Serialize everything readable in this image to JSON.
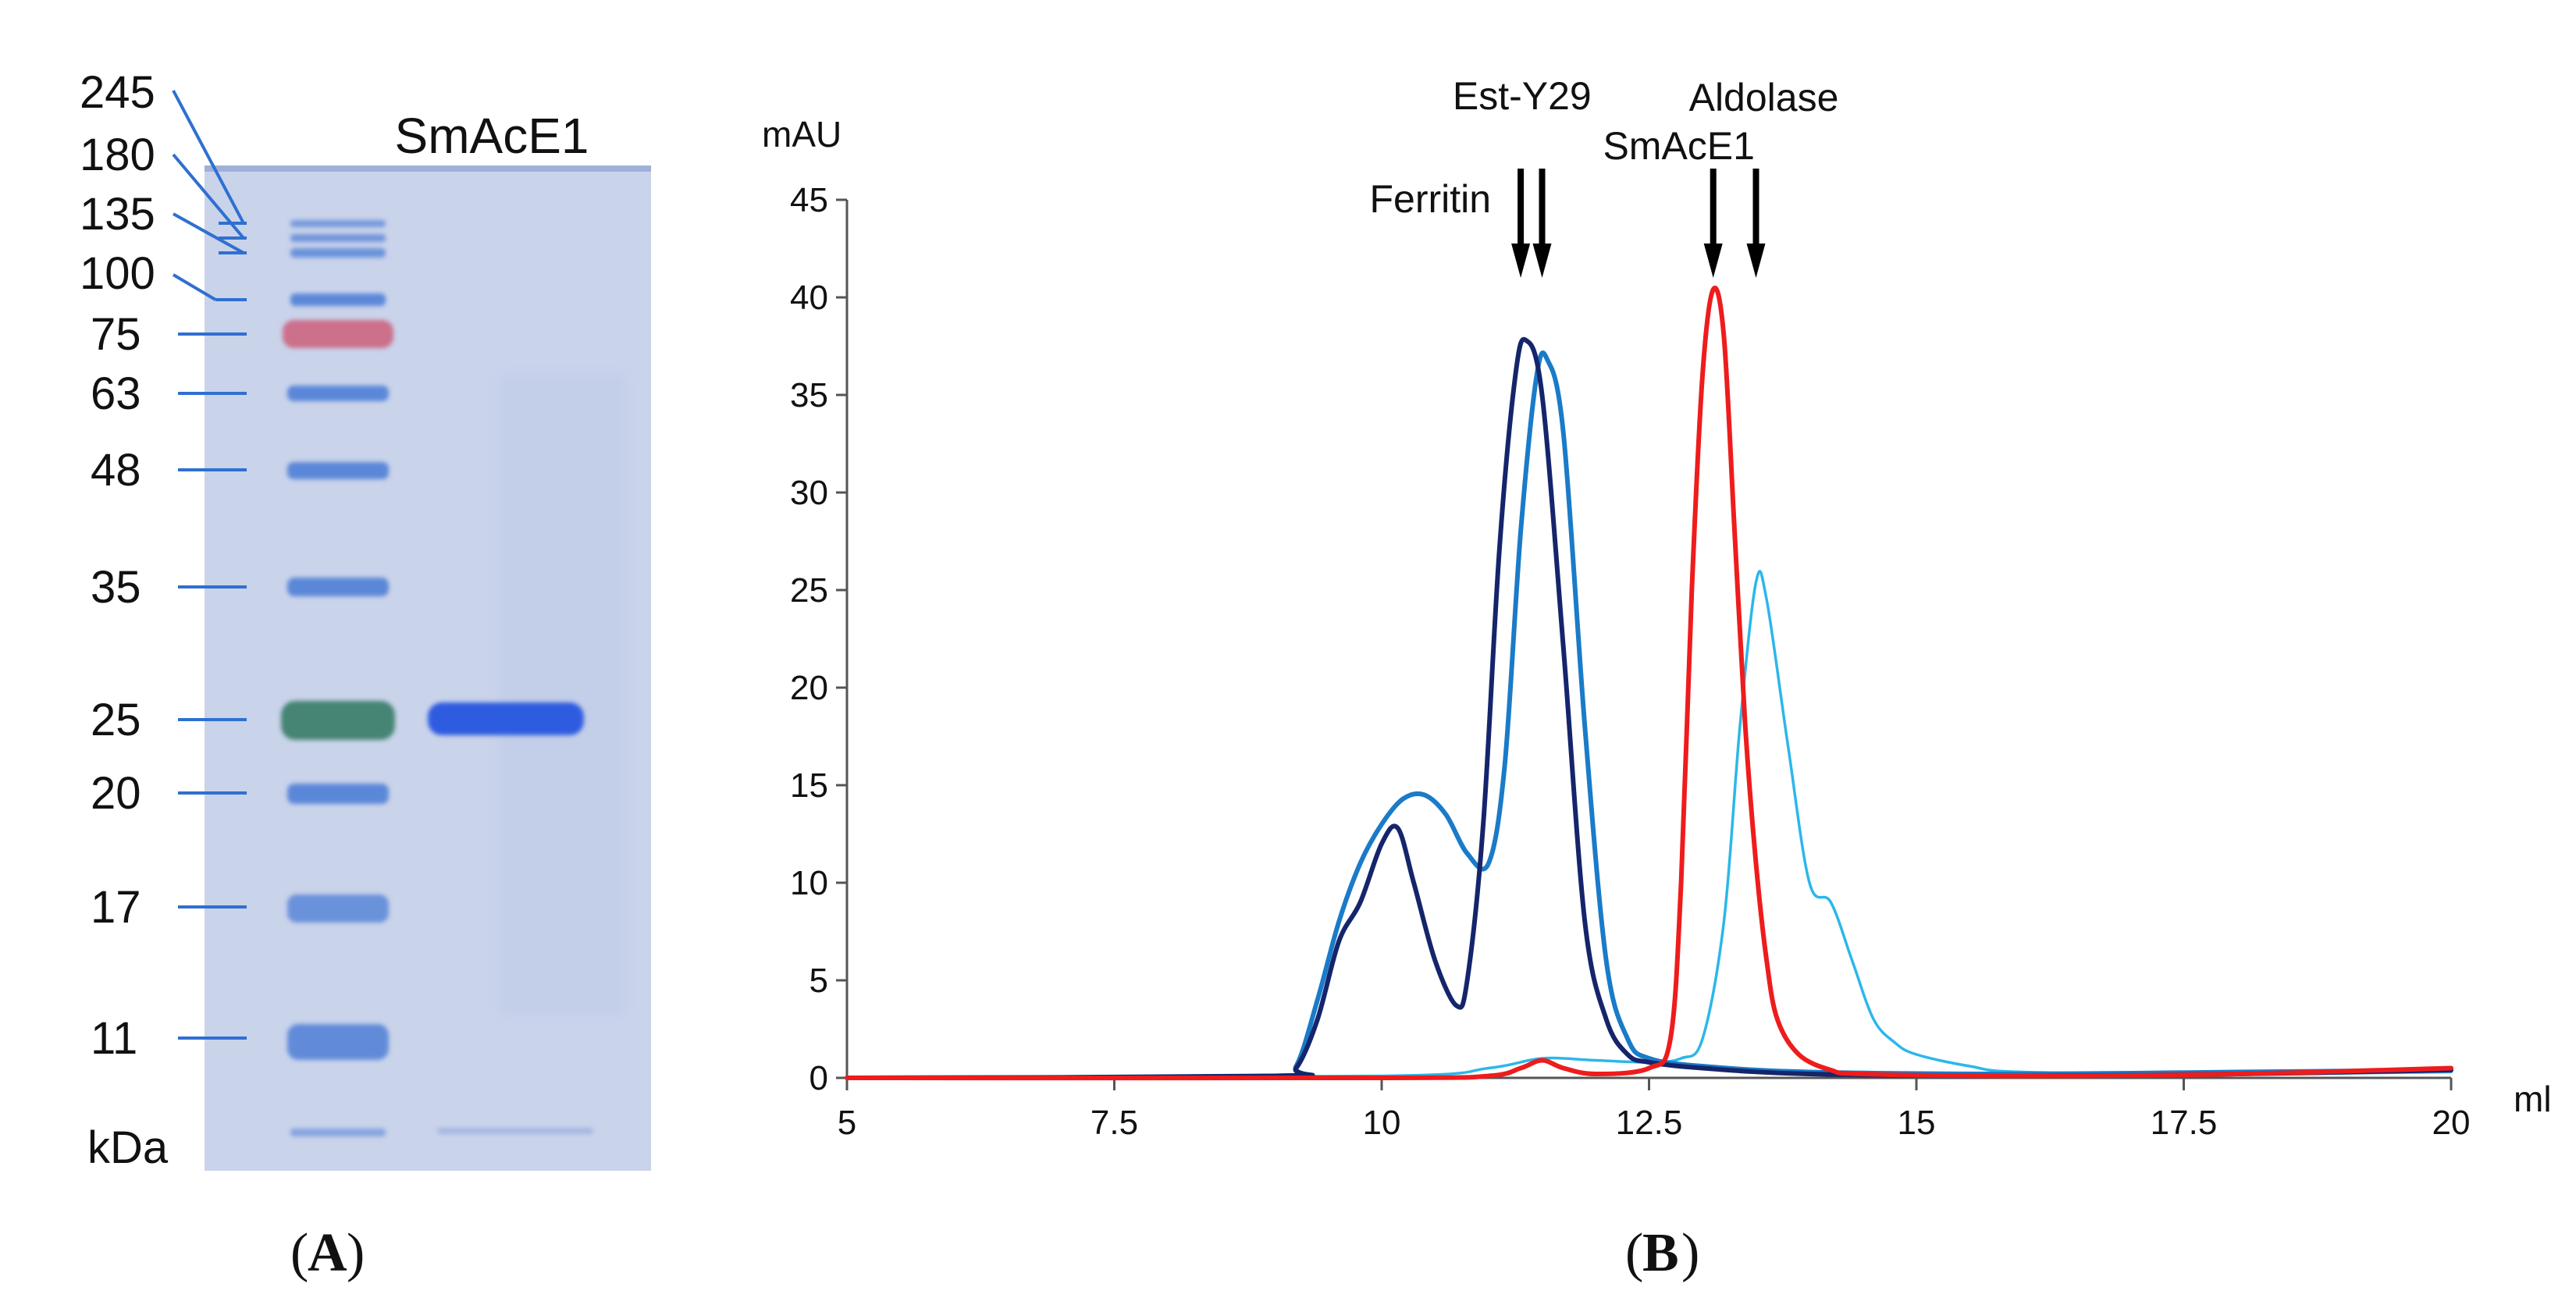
{
  "panel_a": {
    "title": "SmAcE1",
    "unit_label": "kDa",
    "panel_label": "A",
    "marker_labels": [
      "245",
      "180",
      "135",
      "100",
      "75",
      "63",
      "48",
      "35",
      "25",
      "20",
      "17",
      "11"
    ]
  },
  "panel_b": {
    "panel_label": "B",
    "arrow_labels": [
      "Ferritin",
      "Est-Y29",
      "SmAcE1",
      "Aldolase"
    ]
  },
  "colors": {
    "gel_bg": "#c9d3ea",
    "marker_blue": "#4f7fd6",
    "marker_red": "#cc6a86",
    "marker_green": "#3e7f6e",
    "sample_band": "#2f5be0",
    "tick_line": "#2f6fd1",
    "series_dark_navy": "#15256b",
    "series_mid_blue": "#1a7bc8",
    "series_light_cyan": "#2bb7ea",
    "series_red": "#ee1c1c"
  },
  "chart_data": {
    "type": "line",
    "title": "",
    "xlabel": "ml",
    "ylabel": "mAU",
    "xlim": [
      5,
      20
    ],
    "ylim": [
      0,
      45
    ],
    "xticks": [
      "5",
      "7.5",
      "10",
      "12.5",
      "15",
      "17.5",
      "20"
    ],
    "yticks": [
      "0",
      "5",
      "10",
      "15",
      "20",
      "25",
      "30",
      "35",
      "40",
      "45"
    ],
    "arrows": [
      {
        "label": "Ferritin",
        "x": 11.3
      },
      {
        "label": "Est-Y29",
        "x": 11.5
      },
      {
        "label": "SmAcE1",
        "x": 13.1
      },
      {
        "label": "Aldolase",
        "x": 13.5
      }
    ],
    "series": [
      {
        "name": "dark navy",
        "color": "#15256b",
        "x": [
          5,
          9.0,
          9.2,
          9.4,
          9.6,
          9.8,
          10.0,
          10.15,
          10.3,
          10.5,
          10.7,
          10.8,
          10.95,
          11.1,
          11.25,
          11.35,
          11.5,
          11.7,
          11.9,
          12.1,
          12.3,
          12.5,
          13,
          14,
          16,
          18,
          20
        ],
        "y": [
          0,
          0.1,
          0.5,
          3,
          7,
          9,
          12,
          12.8,
          10,
          6,
          3.7,
          5,
          13,
          27,
          36,
          37.8,
          35,
          22,
          8,
          3,
          1.2,
          0.8,
          0.5,
          0.2,
          0.1,
          0.2,
          0.4
        ]
      },
      {
        "name": "mid blue",
        "color": "#1a7bc8",
        "x": [
          5,
          9.0,
          9.2,
          9.4,
          9.6,
          9.8,
          10.0,
          10.2,
          10.4,
          10.6,
          10.8,
          11.0,
          11.15,
          11.3,
          11.45,
          11.55,
          11.7,
          11.9,
          12.1,
          12.3,
          12.5,
          13,
          14,
          16,
          18,
          20
        ],
        "y": [
          0,
          0.1,
          0.6,
          4,
          8,
          11,
          13,
          14.3,
          14.5,
          13.5,
          11.5,
          11,
          16,
          28,
          36,
          36.8,
          33,
          18,
          6,
          2,
          1,
          0.6,
          0.3,
          0.2,
          0.3,
          0.4
        ]
      },
      {
        "name": "light cyan",
        "color": "#2bb7ea",
        "x": [
          5,
          10,
          11,
          11.5,
          12,
          12.5,
          12.8,
          13.0,
          13.2,
          13.35,
          13.5,
          13.6,
          13.8,
          14.0,
          14.2,
          14.4,
          14.6,
          14.8,
          15.0,
          15.5,
          16,
          18,
          20
        ],
        "y": [
          0,
          0.1,
          0.5,
          1.0,
          0.9,
          0.8,
          1.0,
          2,
          8,
          18,
          25.4,
          24.5,
          17,
          10,
          9,
          6,
          3,
          1.8,
          1.2,
          0.6,
          0.3,
          0.2,
          0.3
        ]
      },
      {
        "name": "red",
        "color": "#ee1c1c",
        "x": [
          5,
          10,
          11,
          11.3,
          11.5,
          11.7,
          12,
          12.5,
          12.7,
          12.8,
          12.9,
          13.0,
          13.1,
          13.2,
          13.3,
          13.4,
          13.5,
          13.6,
          13.7,
          13.9,
          14.2,
          14.5,
          16,
          18,
          20
        ],
        "y": [
          0,
          0,
          0.1,
          0.5,
          0.9,
          0.5,
          0.2,
          0.5,
          2,
          10,
          25,
          36,
          40.4,
          38,
          28,
          18,
          11,
          6,
          3,
          1.2,
          0.4,
          0.2,
          0.1,
          0.2,
          0.5
        ]
      }
    ]
  }
}
